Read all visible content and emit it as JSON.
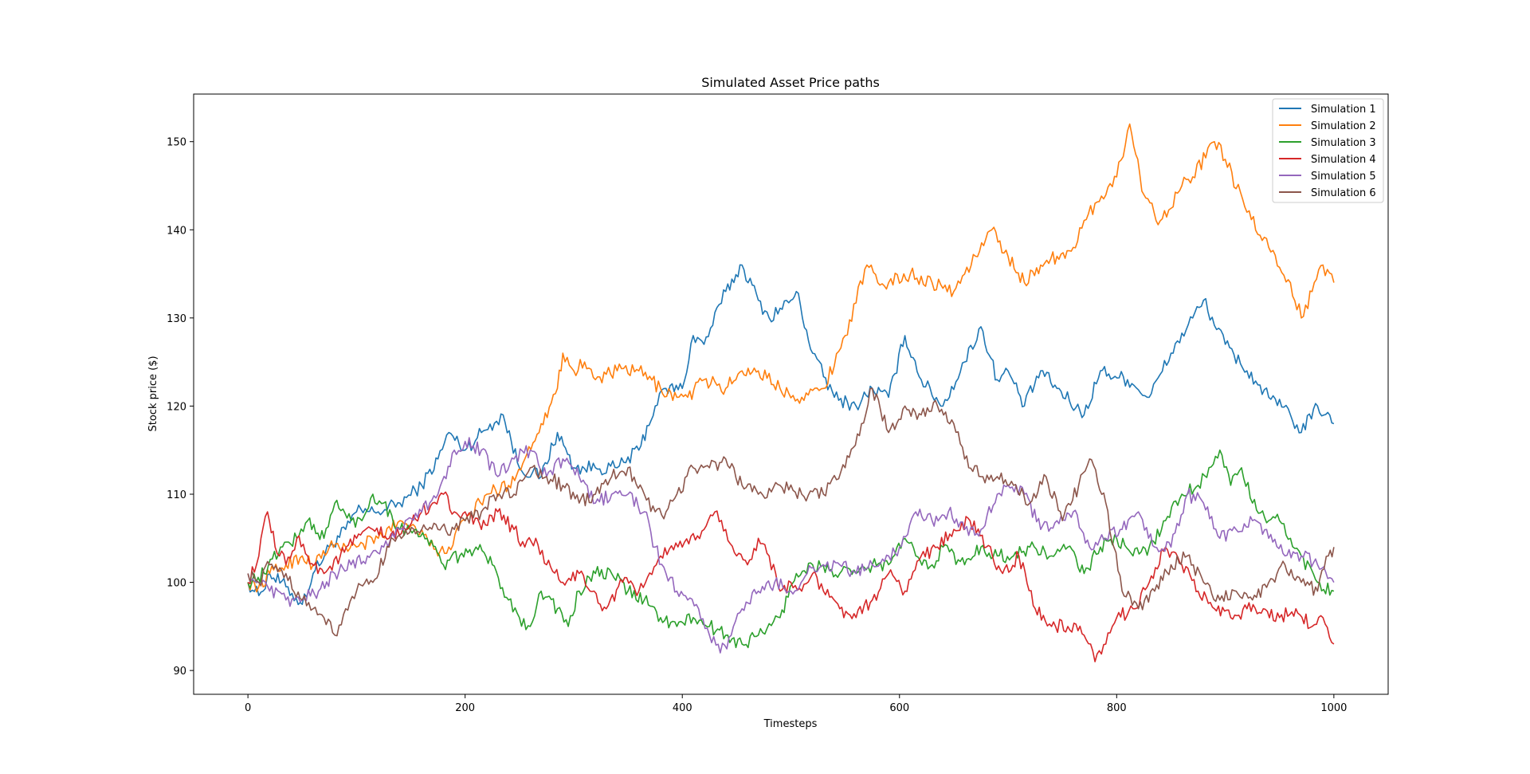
{
  "chart_data": {
    "type": "line",
    "title": "Simulated Asset Price paths",
    "xlabel": "Timesteps",
    "ylabel": "Stock price ($)",
    "xlim": [
      -50,
      1050
    ],
    "ylim": [
      87.3,
      155.4
    ],
    "xticks": [
      0,
      200,
      400,
      600,
      800,
      1000
    ],
    "yticks": [
      90,
      100,
      110,
      120,
      130,
      140,
      150
    ],
    "grid": false,
    "legend_position": "top-right",
    "series": [
      {
        "name": "Simulation 1",
        "color": "#1f77b4",
        "x": [
          0,
          10,
          20,
          35,
          50,
          60,
          75,
          90,
          100,
          120,
          140,
          160,
          175,
          185,
          200,
          215,
          235,
          250,
          270,
          285,
          300,
          320,
          340,
          360,
          375,
          385,
          400,
          410,
          420,
          440,
          455,
          470,
          480,
          500,
          505,
          520,
          540,
          560,
          575,
          590,
          605,
          620,
          640,
          660,
          675,
          690,
          700,
          715,
          730,
          745,
          770,
          785,
          810,
          830,
          850,
          870,
          880,
          900,
          920,
          940,
          960,
          970,
          985,
          1000
        ],
        "y": [
          100,
          98.5,
          101,
          99.5,
          97.5,
          101,
          104,
          106,
          108,
          108,
          109,
          111,
          114,
          117,
          115,
          117,
          119,
          113,
          112,
          117,
          113,
          113,
          113,
          115,
          120,
          122,
          122,
          128,
          127,
          133,
          136,
          132,
          130,
          132,
          133,
          126,
          121,
          120,
          122,
          121,
          128,
          123,
          120,
          125,
          129,
          123,
          124,
          120,
          124,
          122,
          119,
          124,
          123,
          121,
          126,
          130,
          132,
          127,
          124,
          121,
          119,
          117,
          120,
          118
        ]
      },
      {
        "name": "Simulation 2",
        "color": "#ff7f0e",
        "x": [
          0,
          10,
          20,
          35,
          50,
          60,
          75,
          90,
          100,
          120,
          140,
          160,
          175,
          185,
          200,
          220,
          240,
          255,
          270,
          285,
          290,
          300,
          310,
          320,
          340,
          360,
          380,
          395,
          405,
          420,
          440,
          455,
          470,
          490,
          510,
          530,
          550,
          570,
          580,
          590,
          610,
          630,
          650,
          670,
          685,
          700,
          715,
          730,
          745,
          760,
          780,
          800,
          812,
          825,
          840,
          860,
          870,
          890,
          900,
          920,
          940,
          960,
          970,
          980,
          990,
          1000
        ],
        "y": [
          100,
          99.5,
          101,
          102,
          103,
          102,
          104,
          104,
          104,
          105,
          107,
          106,
          103,
          104,
          107,
          110,
          111,
          114,
          118,
          122,
          126,
          124,
          125,
          123,
          124,
          124,
          122,
          121,
          121,
          123,
          122,
          124,
          124,
          122,
          121,
          122,
          128,
          136,
          134,
          134,
          135,
          134,
          133,
          137,
          140,
          137,
          134,
          136,
          137,
          138,
          143,
          146,
          152,
          144,
          141,
          145,
          146,
          150,
          148,
          142,
          138,
          134,
          130,
          133,
          136,
          134
        ]
      },
      {
        "name": "Simulation 3",
        "color": "#2ca02c",
        "x": [
          0,
          15,
          30,
          45,
          55,
          70,
          80,
          95,
          105,
          115,
          125,
          140,
          155,
          165,
          180,
          195,
          210,
          225,
          240,
          250,
          260,
          270,
          285,
          295,
          305,
          320,
          335,
          350,
          365,
          380,
          395,
          410,
          425,
          440,
          455,
          470,
          490,
          505,
          520,
          545,
          560,
          575,
          590,
          605,
          615,
          630,
          640,
          660,
          675,
          690,
          705,
          720,
          740,
          755,
          770,
          785,
          800,
          815,
          830,
          845,
          860,
          875,
          885,
          895,
          905,
          915,
          925,
          940,
          950,
          960,
          970,
          985,
          1000
        ],
        "y": [
          100,
          101,
          104,
          105,
          107,
          105,
          109,
          107,
          107,
          110,
          109,
          106,
          106,
          105,
          102,
          103,
          104,
          102,
          98,
          96,
          95,
          99,
          97,
          95,
          99,
          101,
          101,
          99,
          98,
          96,
          95,
          96,
          95,
          94,
          93,
          94,
          96,
          101,
          102,
          101,
          101,
          102,
          102,
          105,
          103,
          102,
          104,
          102,
          104,
          103,
          103,
          104,
          103,
          104,
          101,
          104,
          105,
          103,
          104,
          107,
          110,
          111,
          113,
          115,
          111,
          113,
          109,
          107,
          107,
          105,
          103,
          100,
          99
        ]
      },
      {
        "name": "Simulation 4",
        "color": "#d62728",
        "x": [
          0,
          10,
          18,
          25,
          35,
          45,
          55,
          70,
          85,
          100,
          115,
          130,
          145,
          160,
          170,
          180,
          190,
          200,
          215,
          230,
          245,
          255,
          265,
          275,
          290,
          305,
          315,
          330,
          345,
          360,
          380,
          400,
          420,
          430,
          440,
          450,
          460,
          470,
          480,
          490,
          500,
          510,
          520,
          530,
          545,
          560,
          575,
          590,
          605,
          620,
          635,
          650,
          665,
          680,
          695,
          710,
          725,
          740,
          755,
          770,
          780,
          790,
          800,
          815,
          830,
          845,
          860,
          875,
          890,
          905,
          920,
          935,
          950,
          965,
          980,
          990,
          1000
        ],
        "y": [
          100,
          103,
          108,
          104,
          102,
          105,
          103,
          101,
          103,
          105,
          106,
          105,
          106,
          108,
          109,
          110,
          108,
          108,
          106,
          108,
          106,
          104,
          105,
          102,
          100,
          101,
          99,
          97,
          100,
          99,
          103,
          104,
          106,
          108,
          106,
          103,
          102,
          105,
          103,
          99,
          100,
          99,
          101,
          99,
          97,
          96,
          98,
          101,
          99,
          103,
          104,
          106,
          107,
          104,
          101,
          103,
          97,
          95,
          95,
          94,
          91,
          93,
          96,
          97,
          100,
          104,
          102,
          99,
          97,
          96,
          97,
          97,
          96,
          97,
          95,
          96,
          93
        ]
      },
      {
        "name": "Simulation 5",
        "color": "#9467bd",
        "x": [
          0,
          10,
          20,
          35,
          50,
          65,
          80,
          95,
          110,
          125,
          145,
          160,
          175,
          190,
          200,
          215,
          230,
          245,
          260,
          275,
          290,
          305,
          320,
          335,
          350,
          365,
          375,
          385,
          395,
          405,
          415,
          425,
          435,
          445,
          455,
          470,
          485,
          500,
          515,
          530,
          545,
          560,
          575,
          590,
          600,
          615,
          630,
          645,
          660,
          675,
          690,
          700,
          715,
          730,
          745,
          760,
          775,
          790,
          805,
          820,
          835,
          850,
          865,
          880,
          895,
          910,
          925,
          940,
          955,
          970,
          985,
          1000
        ],
        "y": [
          101,
          100,
          99,
          98,
          98,
          99,
          101,
          102,
          103,
          104,
          107,
          108,
          110,
          115,
          116,
          115,
          112,
          114,
          115,
          112,
          114,
          112,
          109,
          110,
          110,
          108,
          104,
          101,
          99,
          98,
          97,
          94,
          92,
          94,
          97,
          99,
          100,
          99,
          101,
          102,
          102,
          101,
          102,
          103,
          104,
          108,
          107,
          108,
          106,
          106,
          110,
          111,
          110,
          106,
          107,
          108,
          104,
          105,
          106,
          108,
          104,
          104,
          110,
          109,
          105,
          106,
          107,
          105,
          103,
          103,
          102,
          100
        ]
      },
      {
        "name": "Simulation 6",
        "color": "#8c564b",
        "x": [
          0,
          10,
          20,
          35,
          50,
          60,
          70,
          80,
          90,
          100,
          115,
          130,
          145,
          160,
          175,
          190,
          200,
          215,
          230,
          245,
          260,
          275,
          290,
          305,
          320,
          335,
          350,
          365,
          375,
          385,
          395,
          410,
          425,
          440,
          455,
          470,
          490,
          510,
          530,
          550,
          565,
          575,
          590,
          605,
          620,
          635,
          650,
          660,
          675,
          690,
          705,
          720,
          735,
          750,
          765,
          775,
          790,
          805,
          820,
          835,
          850,
          865,
          880,
          895,
          910,
          925,
          940,
          955,
          970,
          985,
          995,
          1000
        ],
        "y": [
          101,
          100,
          102,
          101,
          98,
          97,
          96,
          94,
          97,
          99,
          100,
          104,
          106,
          106,
          106,
          106,
          107,
          108,
          110,
          110,
          113,
          112,
          111,
          109,
          110,
          112,
          113,
          110,
          108,
          108,
          110,
          113,
          113,
          114,
          111,
          110,
          111,
          110,
          110,
          113,
          118,
          122,
          117,
          120,
          119,
          120,
          118,
          114,
          112,
          112,
          111,
          109,
          112,
          107,
          111,
          114,
          109,
          99,
          97,
          99,
          102,
          103,
          100,
          98,
          99,
          98,
          100,
          102,
          100,
          99,
          103,
          104
        ]
      }
    ]
  }
}
